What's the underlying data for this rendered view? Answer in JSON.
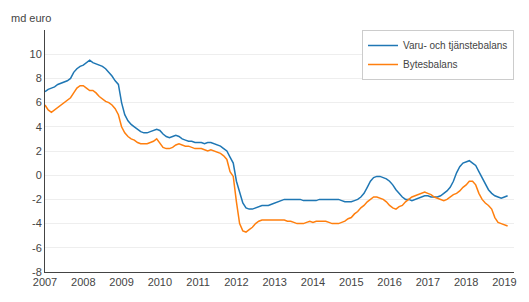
{
  "chart_data": {
    "type": "line",
    "ylabel": "md euro",
    "x": [
      2007.0,
      2007.083,
      2007.167,
      2007.25,
      2007.333,
      2007.417,
      2007.5,
      2007.583,
      2007.667,
      2007.75,
      2007.833,
      2007.917,
      2008.0,
      2008.083,
      2008.167,
      2008.25,
      2008.333,
      2008.417,
      2008.5,
      2008.583,
      2008.667,
      2008.75,
      2008.833,
      2008.917,
      2009.0,
      2009.083,
      2009.167,
      2009.25,
      2009.333,
      2009.417,
      2009.5,
      2009.583,
      2009.667,
      2009.75,
      2009.833,
      2009.917,
      2010.0,
      2010.083,
      2010.167,
      2010.25,
      2010.333,
      2010.417,
      2010.5,
      2010.583,
      2010.667,
      2010.75,
      2010.833,
      2010.917,
      2011.0,
      2011.083,
      2011.167,
      2011.25,
      2011.333,
      2011.417,
      2011.5,
      2011.583,
      2011.667,
      2011.75,
      2011.833,
      2011.917,
      2012.0,
      2012.083,
      2012.167,
      2012.25,
      2012.333,
      2012.417,
      2012.5,
      2012.583,
      2012.667,
      2012.75,
      2012.833,
      2012.917,
      2013.0,
      2013.083,
      2013.167,
      2013.25,
      2013.333,
      2013.417,
      2013.5,
      2013.583,
      2013.667,
      2013.75,
      2013.833,
      2013.917,
      2014.0,
      2014.083,
      2014.167,
      2014.25,
      2014.333,
      2014.417,
      2014.5,
      2014.583,
      2014.667,
      2014.75,
      2014.833,
      2014.917,
      2015.0,
      2015.083,
      2015.167,
      2015.25,
      2015.333,
      2015.417,
      2015.5,
      2015.583,
      2015.667,
      2015.75,
      2015.833,
      2015.917,
      2016.0,
      2016.083,
      2016.167,
      2016.25,
      2016.333,
      2016.417,
      2016.5,
      2016.583,
      2016.667,
      2016.75,
      2016.833,
      2016.917,
      2017.0,
      2017.083,
      2017.167,
      2017.25,
      2017.333,
      2017.417,
      2017.5,
      2017.583,
      2017.667,
      2017.75,
      2017.833,
      2017.917,
      2018.0,
      2018.083,
      2018.167,
      2018.25,
      2018.333,
      2018.417,
      2018.5,
      2018.583,
      2018.667,
      2018.75,
      2018.833,
      2018.917,
      2019.0,
      2019.083
    ],
    "series": [
      {
        "name": "Varu- och tjänstebalans",
        "values": [
          6.9,
          7.1,
          7.2,
          7.3,
          7.5,
          7.6,
          7.7,
          7.8,
          8.0,
          8.5,
          8.8,
          9.0,
          9.1,
          9.3,
          9.5,
          9.3,
          9.2,
          9.1,
          9.0,
          8.8,
          8.5,
          8.2,
          7.8,
          7.5,
          6.0,
          5.0,
          4.5,
          4.2,
          4.0,
          3.8,
          3.6,
          3.5,
          3.5,
          3.6,
          3.7,
          3.8,
          3.7,
          3.4,
          3.2,
          3.1,
          3.2,
          3.3,
          3.2,
          3.0,
          2.9,
          2.8,
          2.8,
          2.7,
          2.7,
          2.7,
          2.6,
          2.7,
          2.7,
          2.6,
          2.5,
          2.4,
          2.2,
          2.0,
          1.5,
          1.0,
          -0.5,
          -1.5,
          -2.3,
          -2.7,
          -2.8,
          -2.8,
          -2.7,
          -2.6,
          -2.5,
          -2.5,
          -2.5,
          -2.4,
          -2.3,
          -2.2,
          -2.1,
          -2.0,
          -2.0,
          -2.0,
          -2.0,
          -2.0,
          -2.0,
          -2.1,
          -2.1,
          -2.1,
          -2.1,
          -2.1,
          -2.0,
          -2.0,
          -2.0,
          -2.0,
          -2.0,
          -2.0,
          -2.0,
          -2.1,
          -2.2,
          -2.2,
          -2.2,
          -2.1,
          -2.0,
          -1.8,
          -1.5,
          -1.0,
          -0.5,
          -0.2,
          -0.1,
          -0.1,
          -0.2,
          -0.3,
          -0.5,
          -0.8,
          -1.2,
          -1.5,
          -1.8,
          -2.0,
          -2.0,
          -2.1,
          -2.0,
          -1.9,
          -1.8,
          -1.7,
          -1.7,
          -1.8,
          -1.8,
          -1.8,
          -1.7,
          -1.5,
          -1.3,
          -1.0,
          -0.5,
          0.2,
          0.7,
          1.0,
          1.1,
          1.2,
          1.0,
          0.8,
          0.3,
          -0.2,
          -0.7,
          -1.2,
          -1.5,
          -1.7,
          -1.8,
          -1.9,
          -1.8,
          -1.7
        ]
      },
      {
        "name": "Bytesbalans",
        "values": [
          5.8,
          5.4,
          5.2,
          5.4,
          5.6,
          5.8,
          6.0,
          6.2,
          6.4,
          6.8,
          7.2,
          7.4,
          7.4,
          7.2,
          7.0,
          7.0,
          6.8,
          6.5,
          6.3,
          6.1,
          6.0,
          5.8,
          5.5,
          5.0,
          4.0,
          3.5,
          3.2,
          3.0,
          2.9,
          2.7,
          2.6,
          2.6,
          2.6,
          2.7,
          2.8,
          3.0,
          2.6,
          2.3,
          2.2,
          2.2,
          2.3,
          2.5,
          2.6,
          2.5,
          2.4,
          2.4,
          2.3,
          2.2,
          2.2,
          2.2,
          2.1,
          2.0,
          2.1,
          2.0,
          1.9,
          1.8,
          1.6,
          1.3,
          0.3,
          -0.1,
          -2.2,
          -4.0,
          -4.6,
          -4.7,
          -4.5,
          -4.3,
          -4.0,
          -3.8,
          -3.7,
          -3.7,
          -3.7,
          -3.7,
          -3.7,
          -3.7,
          -3.7,
          -3.7,
          -3.8,
          -3.8,
          -3.9,
          -4.0,
          -4.0,
          -4.0,
          -3.9,
          -3.8,
          -3.9,
          -3.8,
          -3.8,
          -3.8,
          -3.8,
          -3.9,
          -4.0,
          -4.0,
          -4.0,
          -3.9,
          -3.8,
          -3.6,
          -3.5,
          -3.2,
          -3.0,
          -2.7,
          -2.5,
          -2.2,
          -2.0,
          -1.8,
          -1.8,
          -1.9,
          -2.0,
          -2.2,
          -2.5,
          -2.7,
          -2.8,
          -2.6,
          -2.5,
          -2.2,
          -2.0,
          -1.8,
          -1.7,
          -1.6,
          -1.5,
          -1.4,
          -1.5,
          -1.6,
          -1.8,
          -1.9,
          -2.0,
          -2.1,
          -2.0,
          -1.8,
          -1.6,
          -1.5,
          -1.3,
          -1.0,
          -0.8,
          -0.5,
          -0.5,
          -0.8,
          -1.5,
          -2.0,
          -2.3,
          -2.5,
          -2.8,
          -3.5,
          -3.9,
          -4.0,
          -4.1,
          -4.2
        ]
      }
    ],
    "xlim": [
      2007.0,
      2019.25
    ],
    "xticks": [
      2007,
      2008,
      2009,
      2010,
      2011,
      2012,
      2013,
      2014,
      2015,
      2016,
      2017,
      2018,
      2019
    ],
    "ylim": [
      -8,
      12
    ],
    "yticks": [
      -8,
      -6,
      -4,
      -2,
      0,
      2,
      4,
      6,
      8,
      10
    ],
    "grid": "y",
    "legend": "upper right"
  }
}
